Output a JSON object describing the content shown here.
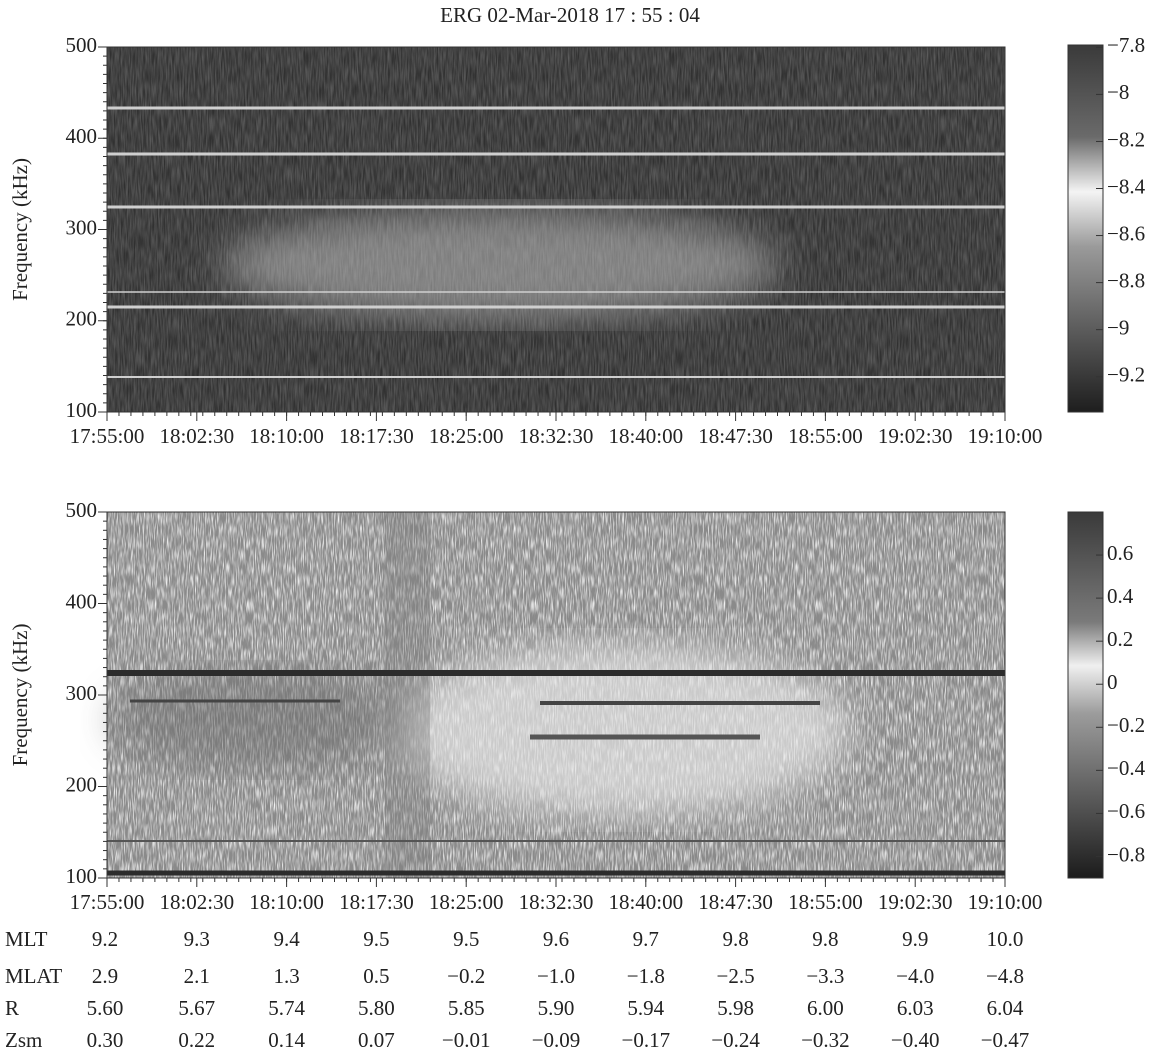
{
  "title": "ERG  02-Mar-2018  17 : 55 : 04",
  "chart_data": [
    {
      "type": "spectrogram",
      "ylabel": "Frequency (kHz)",
      "ylim": [
        100,
        500
      ],
      "yticks": [
        100,
        200,
        300,
        400,
        500
      ],
      "xlim": [
        "17:55:00",
        "19:10:00"
      ],
      "xticks": [
        "17:55:00",
        "18:02:30",
        "18:10:00",
        "18:17:30",
        "18:25:00",
        "18:32:30",
        "18:40:00",
        "18:47:30",
        "18:55:00",
        "19:02:30",
        "19:10:00"
      ],
      "colorbar": {
        "lim": [
          -9.35,
          -7.79
        ],
        "ticks": [
          {
            "value": -7.8,
            "label": "−7.8"
          },
          {
            "value": -8,
            "label": "−8"
          },
          {
            "value": -8.2,
            "label": "−8.2"
          },
          {
            "value": -8.4,
            "label": "−8.4"
          },
          {
            "value": -8.6,
            "label": "−8.6"
          },
          {
            "value": -8.8,
            "label": "−8.8"
          },
          {
            "value": -9,
            "label": "−9"
          },
          {
            "value": -9.2,
            "label": "−9.2"
          }
        ]
      }
    },
    {
      "type": "spectrogram",
      "ylabel": "Frequency (kHz)",
      "ylim": [
        100,
        500
      ],
      "yticks": [
        100,
        200,
        300,
        400,
        500
      ],
      "xlim": [
        "17:55:00",
        "19:10:00"
      ],
      "xticks": [
        "17:55:00",
        "18:02:30",
        "18:10:00",
        "18:17:30",
        "18:25:00",
        "18:32:30",
        "18:40:00",
        "18:47:30",
        "18:55:00",
        "19:02:30",
        "19:10:00"
      ],
      "colorbar": {
        "lim": [
          -0.9,
          0.8
        ],
        "ticks": [
          0.6,
          0.4,
          0.2,
          0,
          {
            "value": -0.2,
            "label": "−0.2"
          },
          {
            "value": -0.4,
            "label": "−0.4"
          },
          {
            "value": -0.6,
            "label": "−0.6"
          },
          {
            "value": -0.8,
            "label": "−0.8"
          }
        ]
      }
    }
  ],
  "ephemeris": [
    {
      "label": "MLT",
      "values": [
        "9.2",
        "9.3",
        "9.4",
        "9.5",
        "9.5",
        "9.6",
        "9.7",
        "9.8",
        "9.8",
        "9.9",
        "10.0"
      ]
    },
    {
      "label": "MLAT",
      "values": [
        "2.9",
        "2.1",
        "1.3",
        "0.5",
        "−0.2",
        "−1.0",
        "−1.8",
        "−2.5",
        "−3.3",
        "−4.0",
        "−4.8"
      ]
    },
    {
      "label": "R",
      "values": [
        "5.60",
        "5.67",
        "5.74",
        "5.80",
        "5.85",
        "5.90",
        "5.94",
        "5.98",
        "6.00",
        "6.03",
        "6.04"
      ]
    },
    {
      "label": "Zsm",
      "values": [
        "0.30",
        "0.22",
        "0.14",
        "0.07",
        "−0.01",
        "−0.09",
        "−0.17",
        "−0.24",
        "−0.32",
        "−0.40",
        "−0.47"
      ]
    }
  ]
}
